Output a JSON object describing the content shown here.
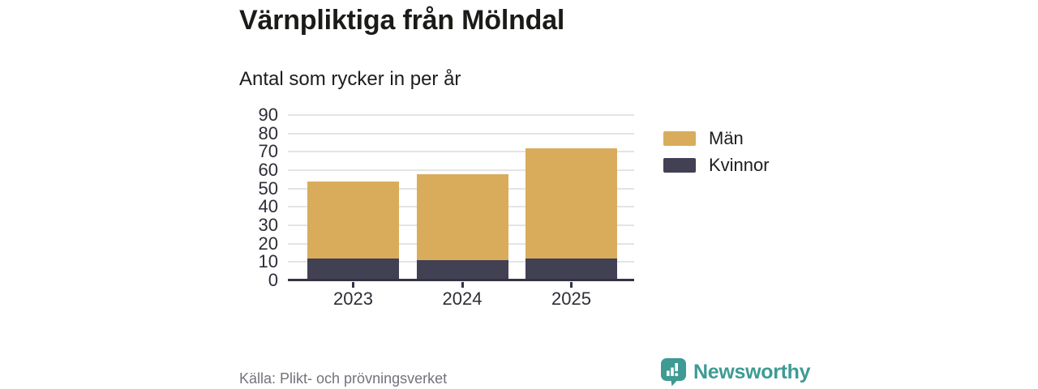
{
  "header": {
    "title": "Värnpliktiga från Mölndal",
    "subtitle": "Antal som rycker in per år"
  },
  "footer": {
    "source": "Källa: Plikt- och prövningsverket",
    "brand": "Newsworthy"
  },
  "colors": {
    "men": "#D9AC5C",
    "women": "#424053",
    "brand_teal": "#3D9B94",
    "gridline": "#E4E4E7",
    "axis_line": "#343243",
    "source_text": "#73737A"
  },
  "chart_data": {
    "type": "bar",
    "stacked": true,
    "title": "Värnpliktiga från Mölndal",
    "subtitle": "Antal som rycker in per år",
    "source": "Källa: Plikt- och prövningsverket",
    "categories": [
      "2023",
      "2024",
      "2025"
    ],
    "series": [
      {
        "name": "Män",
        "color": "#D9AC5C",
        "values": [
          42,
          47,
          60
        ]
      },
      {
        "name": "Kvinnor",
        "color": "#424053",
        "values": [
          12,
          11,
          12
        ]
      }
    ],
    "totals": [
      54,
      58,
      72
    ],
    "xlabel": "",
    "ylabel": "",
    "ylim": [
      0,
      90
    ],
    "ytick_step": 10,
    "grid": true,
    "legend_position": "right"
  }
}
